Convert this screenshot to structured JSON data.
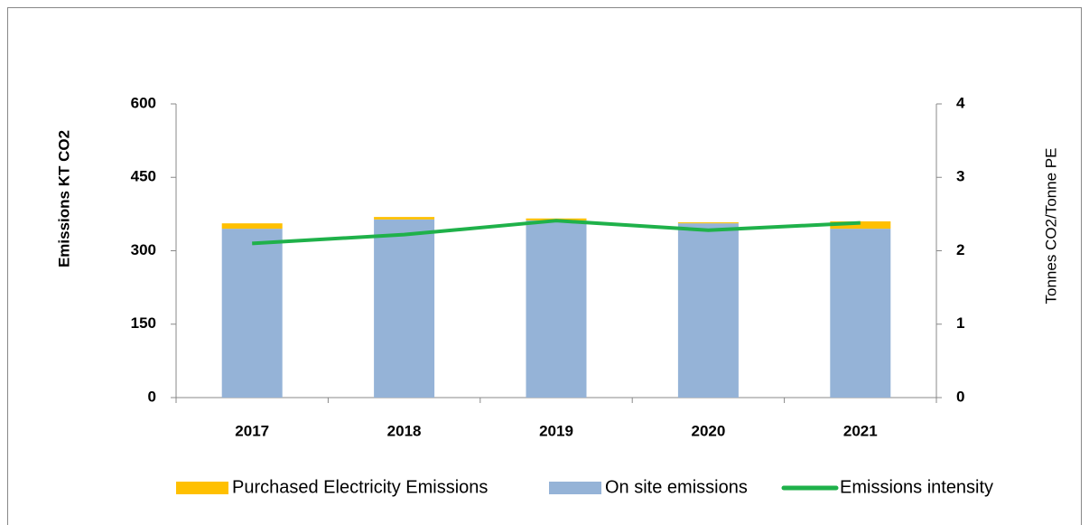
{
  "chart_data": {
    "type": "bar",
    "stacked": true,
    "categories": [
      "2017",
      "2018",
      "2019",
      "2020",
      "2021"
    ],
    "ylabel": "Emissions KT CO2",
    "y2label": "Tonnes CO2/Tonne PE",
    "ylim": [
      0,
      600
    ],
    "yticks": [
      0,
      150,
      300,
      450,
      600
    ],
    "y2lim": [
      0,
      4
    ],
    "y2ticks": [
      0,
      1,
      2,
      3,
      4
    ],
    "legend": "bottom",
    "series": [
      {
        "name": "Purchased Electricity Emissions",
        "color": "#ffc000",
        "values": [
          11,
          5,
          4,
          2,
          15
        ]
      },
      {
        "name": "On site emissions",
        "color": "#95b3d7",
        "values": [
          345,
          364,
          362,
          356,
          345
        ]
      },
      {
        "name": "Emissions intensity",
        "color": "#1fb14a",
        "type": "line",
        "axis": "y2",
        "values": [
          2.1,
          2.22,
          2.41,
          2.28,
          2.38
        ]
      }
    ]
  }
}
